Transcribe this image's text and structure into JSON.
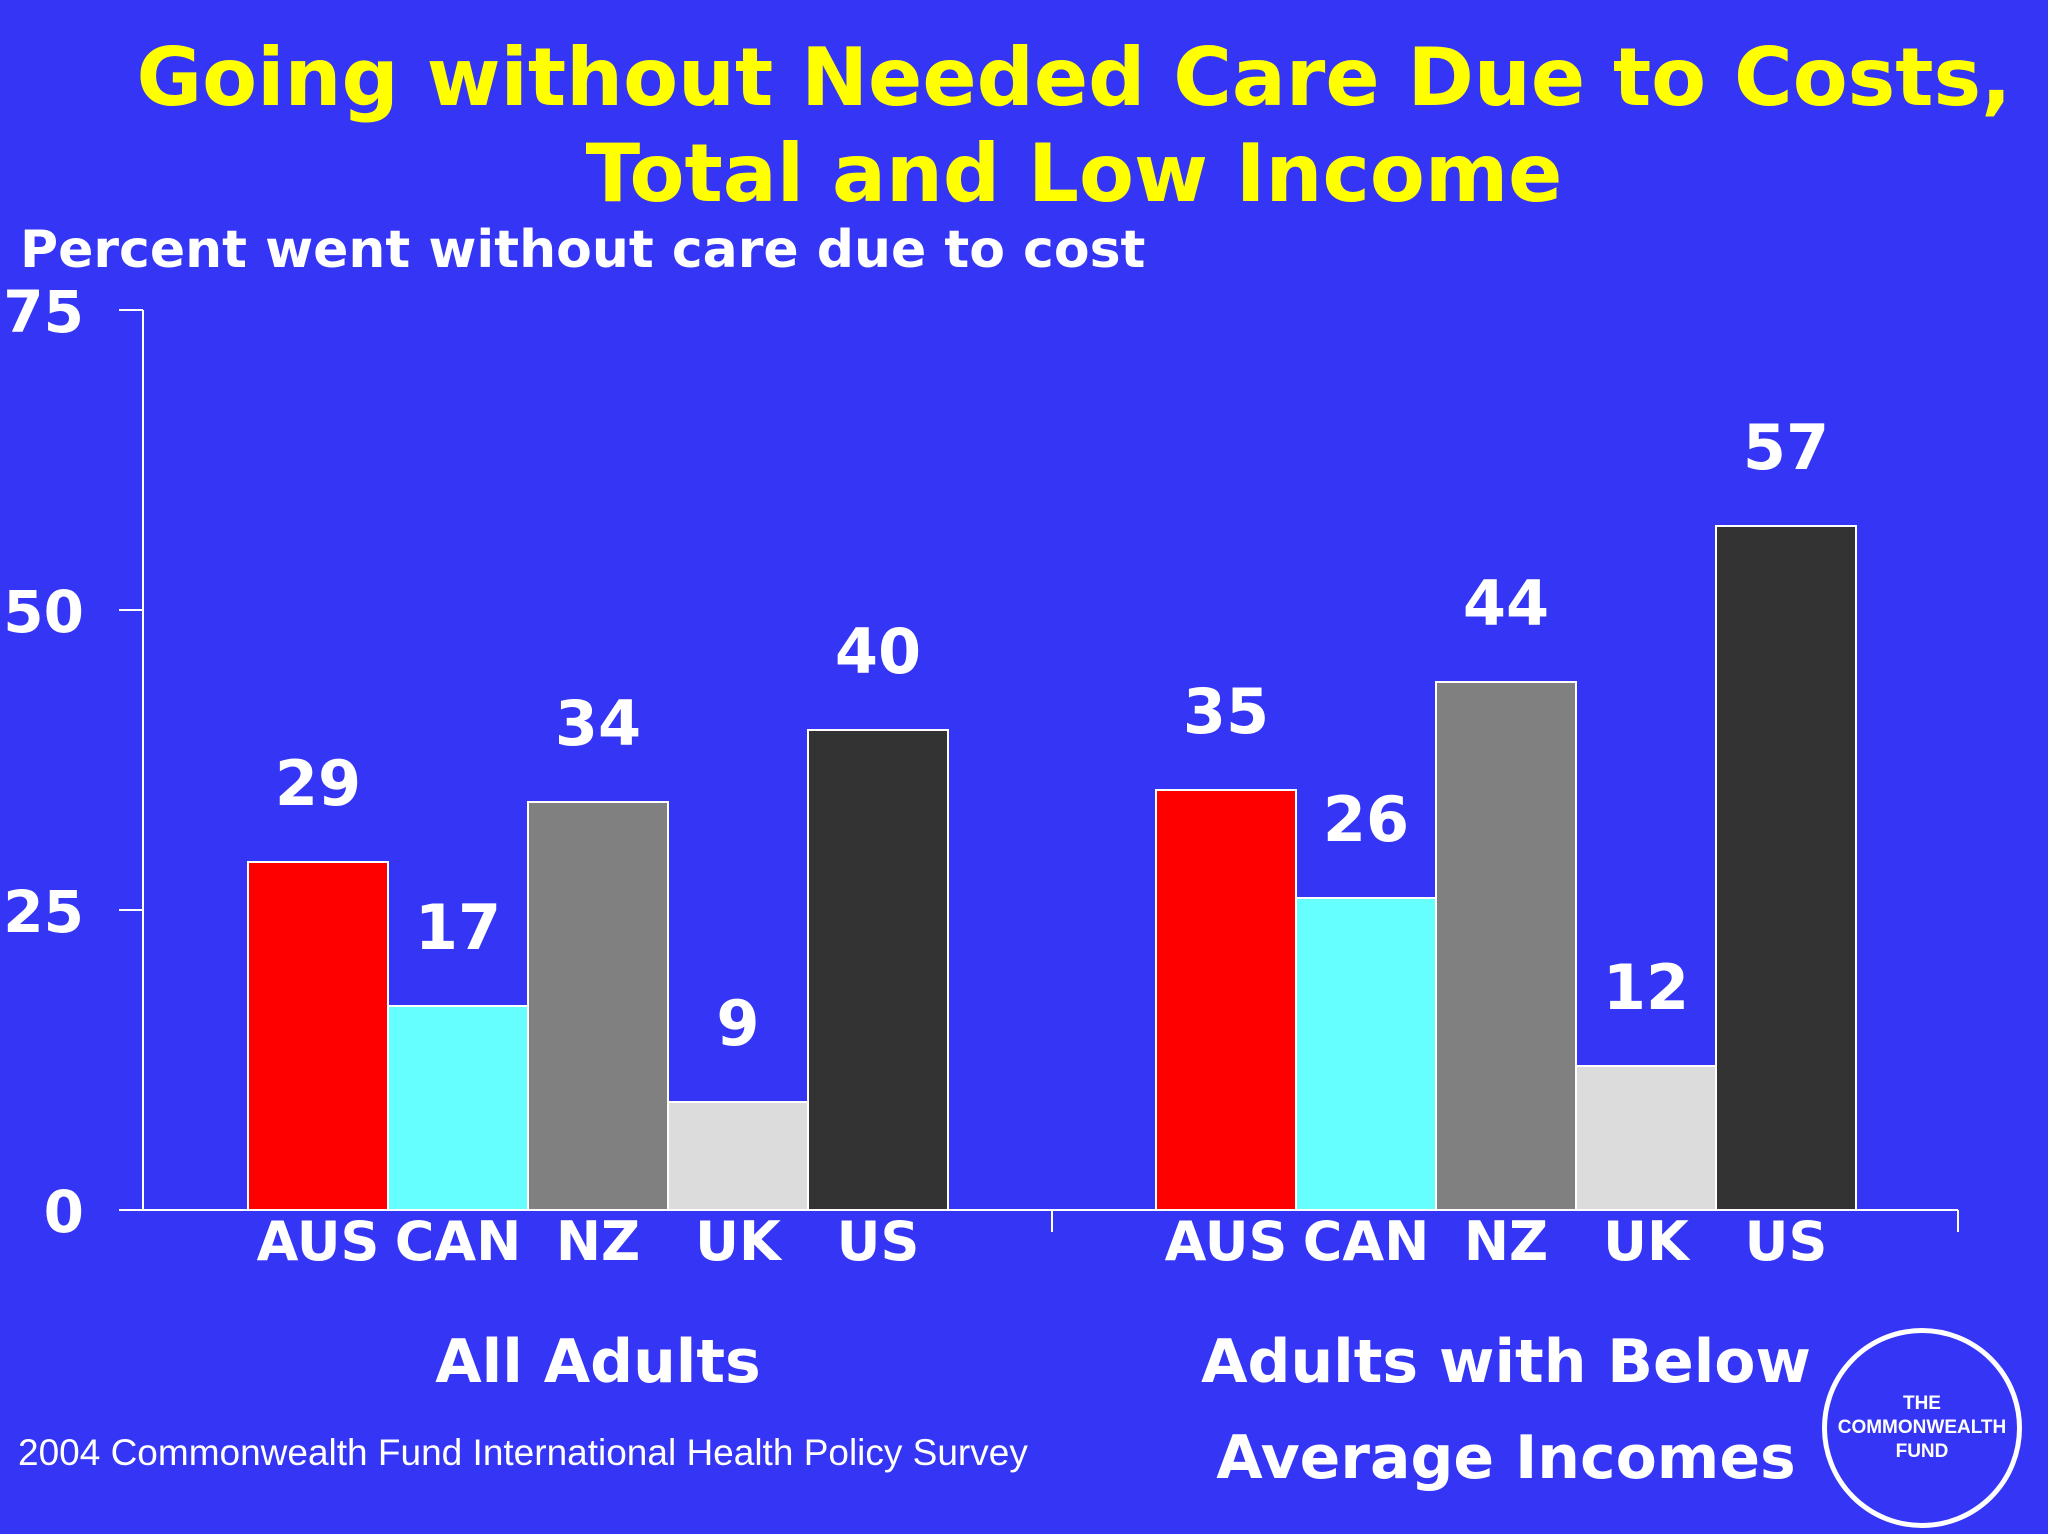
{
  "title_line1": "Going without Needed Care Due to Costs,",
  "title_line2": "Total and Low Income",
  "source": "2004 Commonwealth Fund International Health Policy Survey",
  "logo_text": "THE\nCOMMONWEALTH\nFUND",
  "colors": {
    "background": "#3535F5",
    "title": "#FFFF00",
    "AUS": "#FF0000",
    "CAN": "#66FFFF",
    "NZ": "#808080",
    "UK": "#DCDCDC",
    "US": "#333333"
  },
  "chart_data": {
    "type": "bar",
    "ylabel": "Percent went without care due to cost",
    "ylim": [
      0,
      75
    ],
    "yticks": [
      0,
      25,
      50,
      75
    ],
    "categories": [
      "AUS",
      "CAN",
      "NZ",
      "UK",
      "US"
    ],
    "groups": [
      {
        "label": "All Adults",
        "values": [
          29,
          17,
          34,
          9,
          40
        ]
      },
      {
        "label": "Adults with Below Average Incomes",
        "label_lines": [
          "Adults with Below",
          "Average Incomes"
        ],
        "values": [
          35,
          26,
          44,
          12,
          57
        ]
      }
    ],
    "grid": false,
    "legend": "none"
  }
}
